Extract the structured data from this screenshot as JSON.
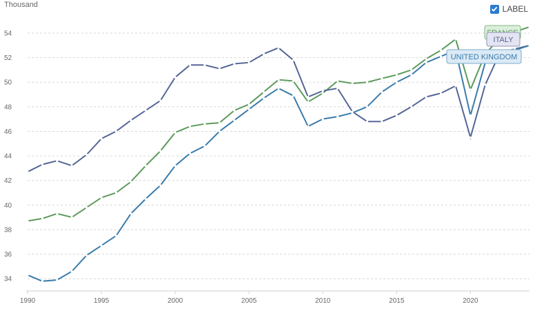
{
  "unit_label": "Thousand",
  "toggle": {
    "label": "LABEL",
    "checked": true
  },
  "chart_data": {
    "type": "line",
    "xlim": [
      1990,
      2024
    ],
    "ylim": [
      33,
      55.4
    ],
    "y_ticks": [
      34,
      36,
      38,
      40,
      42,
      44,
      46,
      48,
      50,
      52,
      54
    ],
    "x_ticks": [
      1990,
      1995,
      2000,
      2005,
      2010,
      2015,
      2020
    ],
    "grid": true,
    "x": [
      1990,
      1991,
      1992,
      1993,
      1994,
      1995,
      1996,
      1997,
      1998,
      1999,
      2000,
      2001,
      2002,
      2003,
      2004,
      2005,
      2006,
      2007,
      2008,
      2009,
      2010,
      2011,
      2012,
      2013,
      2014,
      2015,
      2016,
      2017,
      2018,
      2019,
      2020,
      2021,
      2022,
      2023,
      2024
    ],
    "series": [
      {
        "name": "FRANCE",
        "color": "#5b9a5b",
        "values": [
          38.7,
          38.9,
          39.3,
          39.0,
          39.8,
          40.6,
          41.0,
          41.9,
          43.2,
          44.4,
          45.9,
          46.4,
          46.6,
          46.7,
          47.7,
          48.2,
          49.2,
          50.2,
          50.1,
          48.4,
          49.1,
          50.1,
          49.9,
          50.0,
          50.3,
          50.6,
          51.0,
          51.9,
          52.6,
          53.5,
          49.4,
          52.3,
          53.6,
          54.1,
          54.5
        ]
      },
      {
        "name": "ITALY",
        "color": "#546695",
        "values": [
          42.7,
          43.3,
          43.6,
          43.2,
          44.1,
          45.4,
          46.0,
          46.9,
          47.7,
          48.5,
          50.4,
          51.4,
          51.4,
          51.1,
          51.5,
          51.6,
          52.3,
          52.8,
          51.8,
          48.8,
          49.3,
          49.5,
          47.6,
          46.8,
          46.8,
          47.3,
          48.0,
          48.8,
          49.1,
          49.7,
          45.5,
          49.8,
          52.4,
          52.7,
          53.0
        ]
      },
      {
        "name": "UNITED KINGDOM",
        "color": "#3a7bab",
        "values": [
          34.3,
          33.8,
          33.9,
          34.6,
          35.9,
          36.7,
          37.5,
          39.3,
          40.5,
          41.6,
          43.2,
          44.2,
          44.8,
          46.0,
          46.9,
          47.8,
          48.7,
          49.5,
          48.9,
          46.4,
          47.0,
          47.2,
          47.5,
          48.0,
          49.2,
          50.0,
          50.6,
          51.6,
          52.1,
          52.6,
          47.3,
          51.6,
          52.3,
          52.6,
          53.0
        ]
      }
    ]
  }
}
